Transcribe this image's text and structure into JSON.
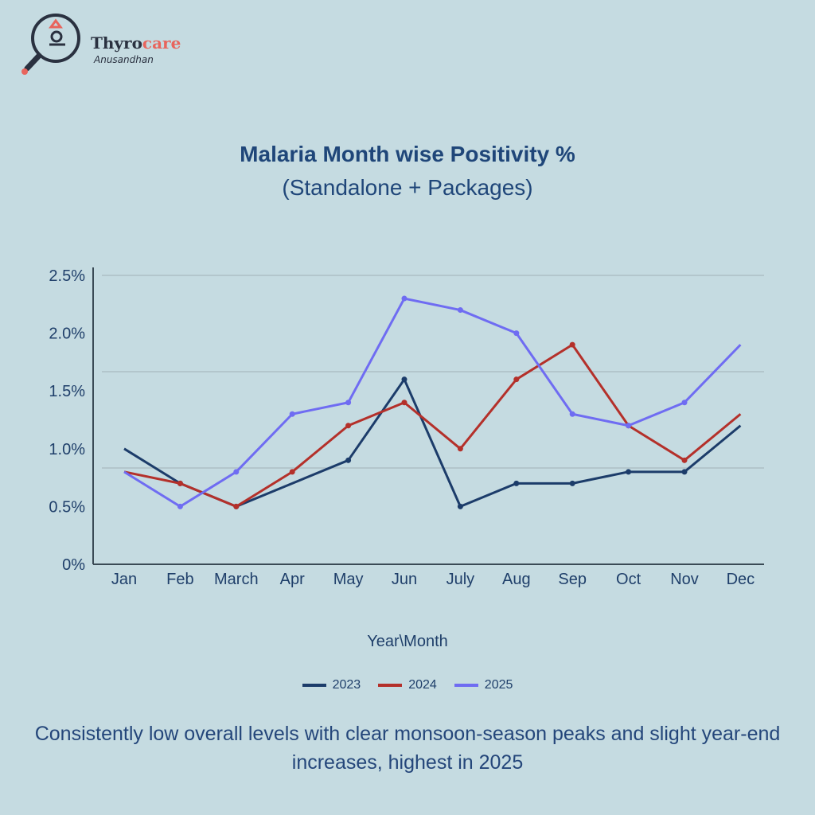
{
  "logo": {
    "brand_main": "Thyro",
    "brand_accent": "care",
    "sub": "Anusandhan"
  },
  "colors": {
    "background": "#c5dbe1",
    "text": "#1f4679",
    "series_2023": "#1c3c6a",
    "series_2024": "#b4302a",
    "series_2025": "#6f6cf2",
    "logo_accent": "#e8655d"
  },
  "chart_data": {
    "type": "line",
    "title": "Malaria Month wise Positivity %",
    "subtitle": "(Standalone + Packages)",
    "xlabel": "Year\\Month",
    "ylabel": "",
    "categories": [
      "Jan",
      "Feb",
      "March",
      "Apr",
      "May",
      "Jun",
      "July",
      "Aug",
      "Sep",
      "Oct",
      "Nov",
      "Dec"
    ],
    "y_ticks": [
      "0%",
      "0.5%",
      "1.0%",
      "1.5%",
      "2.0%",
      "2.5%"
    ],
    "y_tick_values": [
      0,
      0.5,
      1.0,
      1.5,
      2.0,
      2.5
    ],
    "ylim": [
      0,
      2.5
    ],
    "grid": true,
    "legend": "bottom-center",
    "series": [
      {
        "name": "2023",
        "color": "#1c3c6a",
        "values": [
          1.0,
          0.7,
          0.5,
          null,
          0.9,
          1.6,
          0.5,
          0.7,
          0.7,
          0.8,
          0.8,
          1.2
        ]
      },
      {
        "name": "2024",
        "color": "#b4302a",
        "values": [
          0.8,
          0.7,
          0.5,
          0.8,
          1.2,
          1.4,
          1.0,
          1.6,
          1.9,
          1.2,
          0.9,
          1.3
        ]
      },
      {
        "name": "2025",
        "color": "#6f6cf2",
        "values": [
          0.8,
          0.5,
          0.8,
          1.3,
          1.4,
          2.3,
          2.2,
          2.0,
          1.3,
          1.2,
          1.4,
          1.9
        ]
      }
    ]
  },
  "caption": "Consistently low overall levels with clear monsoon-season peaks and slight year-end increases, highest in 2025"
}
